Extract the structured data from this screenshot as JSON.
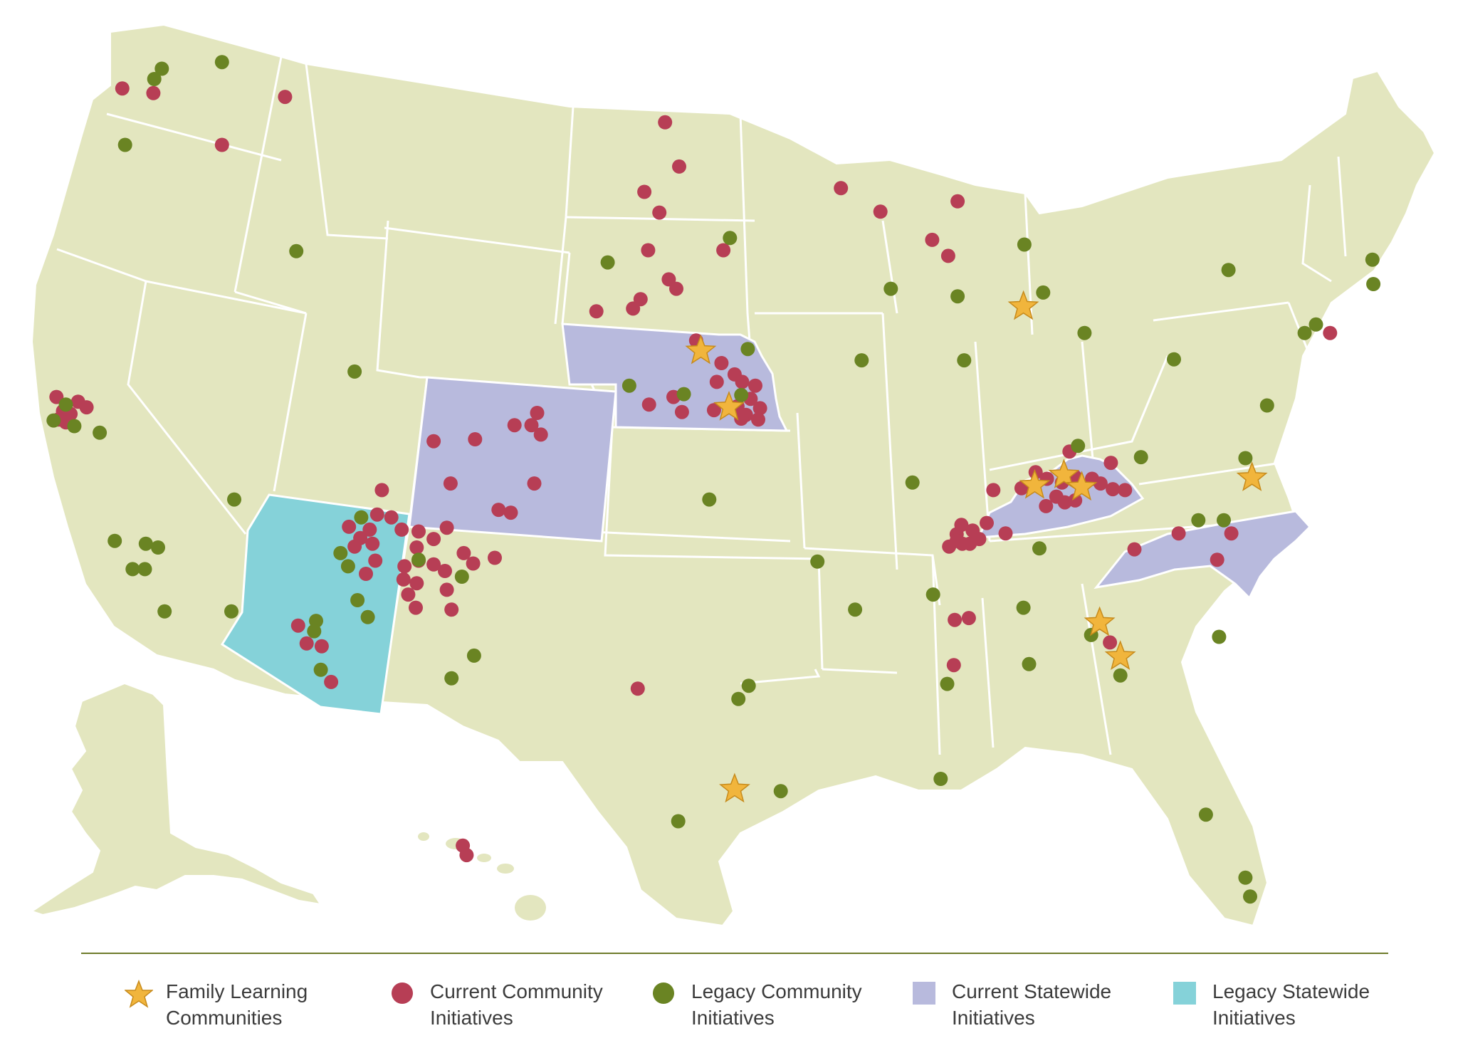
{
  "colors": {
    "background": "#ffffff",
    "land": "#e3e6bf",
    "border": "#ffffff",
    "current_statewide": "#b8badd",
    "legacy_statewide": "#85d2d9",
    "current_community": "#b73e55",
    "legacy_community": "#6a8423",
    "star": "#f1b53c"
  },
  "map": {
    "current_statewide_states": [
      "Nebraska",
      "Colorado",
      "Kentucky",
      "North Carolina"
    ],
    "legacy_statewide_states": [
      "Arizona"
    ],
    "family_learning_communities": 12,
    "current_community_markers": 123,
    "legacy_community_markers": 67
  },
  "legend": {
    "items": [
      {
        "key": "family-learning-communities",
        "icon": "star-icon",
        "line1": "Family Learning",
        "line2": "Communities"
      },
      {
        "key": "current-community-initiatives",
        "icon": "red-dot-icon",
        "line1": "Current Community",
        "line2": "Initiatives"
      },
      {
        "key": "legacy-community-initiatives",
        "icon": "green-dot-icon",
        "line1": "Legacy Community",
        "line2": "Initiatives"
      },
      {
        "key": "current-statewide-initiatives",
        "icon": "lavender-square-icon",
        "line1": "Current Statewide",
        "line2": "Initiatives"
      },
      {
        "key": "legacy-statewide-initiatives",
        "icon": "teal-square-icon",
        "line1": "Legacy Statewide",
        "line2": "Initiatives"
      }
    ]
  }
}
